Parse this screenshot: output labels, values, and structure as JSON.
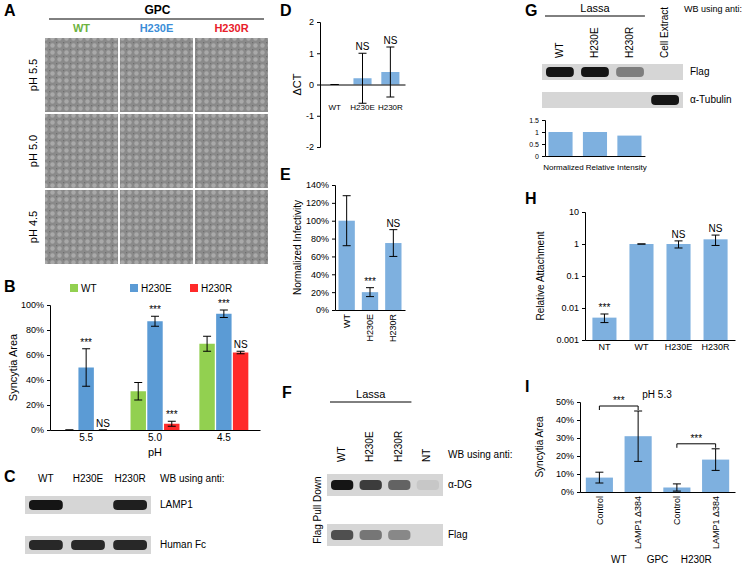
{
  "figure": {
    "A": {
      "label": "A",
      "title": "GPC",
      "columns": [
        {
          "name": "WT",
          "color": "#6cb33f"
        },
        {
          "name": "H230E",
          "color": "#3b8ed8"
        },
        {
          "name": "H230R",
          "color": "#e8202a"
        }
      ],
      "rows": [
        "pH 5.5",
        "pH 5.0",
        "pH 4.5"
      ]
    },
    "C": {
      "label": "C",
      "lanes": [
        "WT",
        "H230E",
        "H230R"
      ],
      "header": "WB using anti:",
      "rows": [
        {
          "name": "LAMP1",
          "bands": [
            1,
            0,
            0.95
          ]
        },
        {
          "name": "Human Fc",
          "bands": [
            0.9,
            0.9,
            0.9
          ]
        }
      ]
    },
    "F": {
      "label": "F",
      "title": "Lassa",
      "lanes": [
        "WT",
        "H230E",
        "H230R",
        "NT"
      ],
      "side_label": "Flag Pull Down",
      "header": "WB using anti:",
      "rows": [
        {
          "name": "α-DG",
          "bands": [
            1,
            0.8,
            0.6,
            0.08
          ]
        },
        {
          "name": "Flag",
          "bands": [
            0.7,
            0.5,
            0.4,
            0
          ]
        }
      ]
    },
    "G": {
      "label": "G",
      "title": "Lassa",
      "lanes": [
        "WT",
        "H230E",
        "H230R",
        "Cell Extract"
      ],
      "header": "WB using anti:",
      "rows": [
        {
          "name": "Flag",
          "bands": [
            1,
            1,
            0.45,
            0
          ]
        },
        {
          "name": "α-Tubulin",
          "bands": [
            0,
            0,
            0,
            1
          ]
        }
      ]
    }
  },
  "chart_data": [
    {
      "panel": "B",
      "type": "bar",
      "y_label": "Syncytia Area",
      "x_label": "pH",
      "categories": [
        "5.5",
        "5.0",
        "4.5"
      ],
      "series": [
        {
          "name": "WT",
          "color": "#92d050",
          "values": [
            0,
            31,
            69
          ],
          "errors": [
            0,
            7,
            6
          ]
        },
        {
          "name": "H230E",
          "color": "#5b9bd5",
          "values": [
            50,
            87,
            93
          ],
          "errors": [
            15,
            4,
            3
          ],
          "significance": [
            "***",
            "***",
            "***"
          ]
        },
        {
          "name": "H230R",
          "color": "#ff2a2a",
          "values": [
            0,
            5,
            62
          ],
          "errors": [
            0,
            2,
            1
          ],
          "significance": [
            "NS",
            "***",
            "NS"
          ]
        }
      ],
      "ylim": [
        0,
        100
      ],
      "yticks": [
        {
          "value": 0,
          "label": "0%"
        },
        {
          "value": 20,
          "label": "20%"
        },
        {
          "value": 40,
          "label": "40%"
        },
        {
          "value": 60,
          "label": "60%"
        },
        {
          "value": 80,
          "label": "80%"
        },
        {
          "value": 100,
          "label": "100%"
        }
      ],
      "legend": "top"
    },
    {
      "panel": "D",
      "type": "bar",
      "y_label": "ΔCT",
      "categories": [
        "WT",
        "H230E",
        "H230R"
      ],
      "values": [
        0,
        0.2,
        0.4
      ],
      "errors": [
        0,
        0.8,
        0.8
      ],
      "significance": [
        null,
        "NS",
        "NS"
      ],
      "color": "#7eb0df",
      "ylim": [
        -2,
        2
      ],
      "yticks": [
        -2,
        -1,
        0,
        1,
        2
      ]
    },
    {
      "panel": "E",
      "type": "bar",
      "y_label": "Normalized Infectivity",
      "categories": [
        "WT",
        "H230E",
        "H230R"
      ],
      "values": [
        100,
        20,
        75
      ],
      "errors": [
        28,
        5,
        15
      ],
      "significance": [
        null,
        "***",
        "NS"
      ],
      "color": "#7eb0df",
      "ylim": [
        0,
        140
      ],
      "yticks": [
        {
          "value": 0,
          "label": "0%"
        },
        {
          "value": 20,
          "label": "20%"
        },
        {
          "value": 40,
          "label": "40%"
        },
        {
          "value": 60,
          "label": "60%"
        },
        {
          "value": 80,
          "label": "80%"
        },
        {
          "value": 100,
          "label": "100%"
        },
        {
          "value": 120,
          "label": "120%"
        },
        {
          "value": 140,
          "label": "140%"
        }
      ]
    },
    {
      "type": "bar",
      "x_label": "Normalized Relative Intensity",
      "categories": [
        null,
        null,
        null
      ],
      "values": [
        1,
        1,
        0.85
      ],
      "color": "#7eb0df",
      "ylim": [
        0,
        1.5
      ],
      "yticks": [
        0,
        0.5,
        1,
        1.5
      ]
    },
    {
      "panel": "H",
      "type": "bar",
      "log": "y",
      "y_label": "Relative Attachment",
      "categories": [
        "NT",
        "WT",
        "H230E",
        "H230R"
      ],
      "values": [
        0.005,
        1,
        1,
        1.4
      ],
      "errors": [
        0.0015,
        0,
        0.25,
        0.5
      ],
      "significance": [
        "***",
        null,
        "NS",
        "NS"
      ],
      "color": "#7eb0df",
      "ylim": [
        0.001,
        10
      ],
      "yticks": [
        0.001,
        0.01,
        0.1,
        1,
        10
      ]
    },
    {
      "panel": "I",
      "type": "bar",
      "y_label": "Syncytia Area",
      "subtitle": "pH 5.3",
      "categories": [
        "Control",
        "LAMP1 Δ384",
        "Control",
        "LAMP1 Δ384"
      ],
      "values": [
        8,
        31,
        2.5,
        18
      ],
      "errors": [
        3,
        14,
        2,
        6
      ],
      "groups": [
        "WT",
        "H230R"
      ],
      "group_title": "GPC",
      "brackets": [
        "***",
        "***"
      ],
      "color": "#7eb0df",
      "ylim": [
        0,
        50
      ],
      "yticks": [
        {
          "value": 0,
          "label": "0%"
        },
        {
          "value": 10,
          "label": "10%"
        },
        {
          "value": 20,
          "label": "20%"
        },
        {
          "value": 30,
          "label": "30%"
        },
        {
          "value": 40,
          "label": "40%"
        },
        {
          "value": 50,
          "label": "50%"
        }
      ]
    }
  ]
}
